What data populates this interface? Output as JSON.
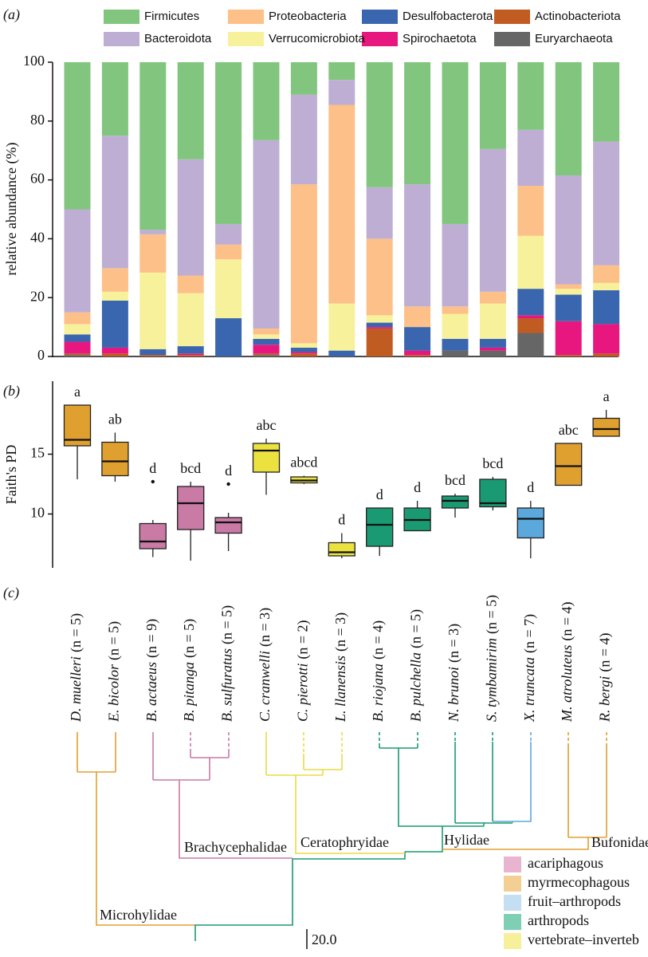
{
  "chart_data": [
    {
      "type": "stacked_bar",
      "panel_label": "(a)",
      "ylabel": "relative abundance (%)",
      "categories": [
        null,
        null,
        null,
        null,
        null,
        null,
        null,
        null,
        null,
        null,
        null,
        null,
        null,
        null,
        null
      ],
      "ylim": [
        0,
        100
      ],
      "yticks": [
        0,
        20,
        40,
        60,
        80,
        100
      ],
      "series": [
        {
          "name": "Euryarchaeota",
          "color": "#666666",
          "values": [
            0.5,
            0,
            0,
            0,
            0,
            0.5,
            0,
            0,
            0,
            0,
            2,
            2,
            8,
            0,
            0
          ]
        },
        {
          "name": "Actinobacteriota",
          "color": "#c05b21",
          "values": [
            0.5,
            1,
            0.5,
            0.5,
            0,
            0.5,
            1,
            0,
            9.5,
            0.5,
            0,
            0,
            5,
            0.5,
            1
          ]
        },
        {
          "name": "Spirochaetota",
          "color": "#e8177f",
          "values": [
            4,
            2,
            0,
            0.5,
            0,
            3,
            0.5,
            0,
            0.5,
            1.5,
            0,
            1,
            1,
            11.5,
            10
          ]
        },
        {
          "name": "Desulfobacterota",
          "color": "#3a66b0",
          "values": [
            2.5,
            16,
            2,
            2.5,
            13,
            2,
            1.5,
            2,
            1.5,
            8,
            4,
            3,
            9,
            9,
            11.5
          ]
        },
        {
          "name": "Verrucomicrobiota",
          "color": "#f8f19b",
          "values": [
            3.5,
            3,
            26,
            18,
            20,
            1.5,
            1.5,
            16,
            2.5,
            0,
            8.5,
            12,
            18,
            2,
            2.5
          ]
        },
        {
          "name": "Proteobacteria",
          "color": "#fcc088",
          "values": [
            4,
            8,
            13,
            6,
            5,
            2,
            54,
            67.5,
            26,
            7,
            2.5,
            4,
            17,
            1.5,
            6
          ]
        },
        {
          "name": "Bacteroidota",
          "color": "#bfaed4",
          "values": [
            35,
            45,
            1.5,
            39.5,
            7,
            64,
            30.5,
            8.5,
            17.5,
            41.5,
            28,
            48.5,
            19,
            37,
            42
          ]
        },
        {
          "name": "Firmicutes",
          "color": "#82c57e",
          "values": [
            50,
            25,
            57,
            33,
            55,
            26.5,
            11,
            6,
            42.5,
            41.5,
            55,
            29.5,
            23,
            38.5,
            27
          ]
        }
      ]
    },
    {
      "type": "box",
      "panel_label": "(b)",
      "ylabel": "Faith's PD",
      "categories": [
        null,
        null,
        null,
        null,
        null,
        null,
        null,
        null,
        null,
        null,
        null,
        null,
        null,
        null,
        null
      ],
      "ylim": [
        5.5,
        21.1
      ],
      "yticks": [
        10,
        15
      ],
      "boxes": [
        {
          "min": 12.9,
          "q1": 15.7,
          "median": 16.2,
          "q3": 19.1,
          "max": 19.1,
          "outliers": [],
          "label": "a",
          "color": "#e0a030"
        },
        {
          "min": 12.7,
          "q1": 13.2,
          "median": 14.4,
          "q3": 16.0,
          "max": 16.8,
          "outliers": [],
          "label": "ab",
          "color": "#e0a030"
        },
        {
          "min": 6.4,
          "q1": 7.1,
          "median": 7.7,
          "q3": 9.2,
          "max": 9.5,
          "outliers": [
            12.7
          ],
          "label": "d",
          "color": "#c97aa5"
        },
        {
          "min": 6.1,
          "q1": 8.7,
          "median": 10.9,
          "q3": 12.3,
          "max": 12.7,
          "outliers": [],
          "label": "bcd",
          "color": "#c97aa5"
        },
        {
          "min": 6.9,
          "q1": 8.4,
          "median": 9.3,
          "q3": 9.7,
          "max": 10.1,
          "outliers": [
            12.5
          ],
          "label": "d",
          "color": "#c97aa5"
        },
        {
          "min": 11.6,
          "q1": 13.5,
          "median": 15.3,
          "q3": 15.9,
          "max": 16.3,
          "outliers": [],
          "label": "abc",
          "color": "#ebe13f"
        },
        {
          "min": 12.5,
          "q1": 12.6,
          "median": 12.8,
          "q3": 13.1,
          "max": 13.2,
          "outliers": [],
          "label": "abcd",
          "color": "#ebe13f"
        },
        {
          "min": 6.3,
          "q1": 6.5,
          "median": 6.8,
          "q3": 7.6,
          "max": 8.4,
          "outliers": [],
          "label": "d",
          "color": "#ebe13f"
        },
        {
          "min": 6.5,
          "q1": 7.3,
          "median": 9.1,
          "q3": 10.5,
          "max": 10.5,
          "outliers": [],
          "label": "d",
          "color": "#1a9a72"
        },
        {
          "min": 8.6,
          "q1": 8.6,
          "median": 9.5,
          "q3": 10.5,
          "max": 11.1,
          "outliers": [],
          "label": "d",
          "color": "#1a9a72"
        },
        {
          "min": 9.7,
          "q1": 10.5,
          "median": 11.1,
          "q3": 11.5,
          "max": 11.7,
          "outliers": [],
          "label": "bcd",
          "color": "#1a9a72"
        },
        {
          "min": 10.3,
          "q1": 10.6,
          "median": 10.9,
          "q3": 12.9,
          "max": 13.1,
          "outliers": [],
          "label": "bcd",
          "color": "#1a9a72"
        },
        {
          "min": 6.3,
          "q1": 8.0,
          "median": 9.6,
          "q3": 10.5,
          "max": 11.1,
          "outliers": [],
          "label": "d",
          "color": "#5ba8dc"
        },
        {
          "min": 12.4,
          "q1": 12.4,
          "median": 14.0,
          "q3": 15.9,
          "max": 15.9,
          "outliers": [],
          "label": "abc",
          "color": "#e0a030"
        },
        {
          "min": 16.5,
          "q1": 16.5,
          "median": 17.1,
          "q3": 18.0,
          "max": 18.7,
          "outliers": [],
          "label": "a",
          "color": "#e0a030"
        }
      ]
    }
  ],
  "tree": {
    "panel_label": "(c)",
    "taxa": [
      {
        "species": "D. muelleri",
        "n": "(n = 5)"
      },
      {
        "species": "E. bicolor",
        "n": "(n = 5)"
      },
      {
        "species": "B. actaeus",
        "n": "(n = 9)"
      },
      {
        "species": "B. pitanga",
        "n": "(n = 5)"
      },
      {
        "species": "B. sulfuratus",
        "n": "(n = 5)"
      },
      {
        "species": "C. cranwelli",
        "n": "(n = 3)"
      },
      {
        "species": "C. pierotti",
        "n": "(n = 2)"
      },
      {
        "species": "L. llanensis",
        "n": "(n = 3)"
      },
      {
        "species": "B. riojana",
        "n": "(n = 4)"
      },
      {
        "species": "B. pulchella",
        "n": "(n = 5)"
      },
      {
        "species": "N. brunoi",
        "n": "(n = 3)"
      },
      {
        "species": "S. tymbamirim",
        "n": "(n = 5)"
      },
      {
        "species": "X. truncata",
        "n": "(n = 7)"
      },
      {
        "species": "M. atroluteus",
        "n": "(n = 4)"
      },
      {
        "species": "R. bergi",
        "n": "(n = 4)"
      }
    ],
    "families": [
      "Microhylidae",
      "Brachycephalidae",
      "Ceratophryidae",
      "Hylidae",
      "Bufonidae"
    ],
    "legend": [
      {
        "label": "acariphagous",
        "color": "#e8b4d0"
      },
      {
        "label": "myrmecophagous",
        "color": "#f3cf94"
      },
      {
        "label": "fruit–arthropods",
        "color": "#c5dff2"
      },
      {
        "label": "arthropods",
        "color": "#7fcfb4"
      },
      {
        "label": "vertebrate–inverteb",
        "color": "#f8ef9a"
      }
    ],
    "scale_label": "20.0"
  }
}
